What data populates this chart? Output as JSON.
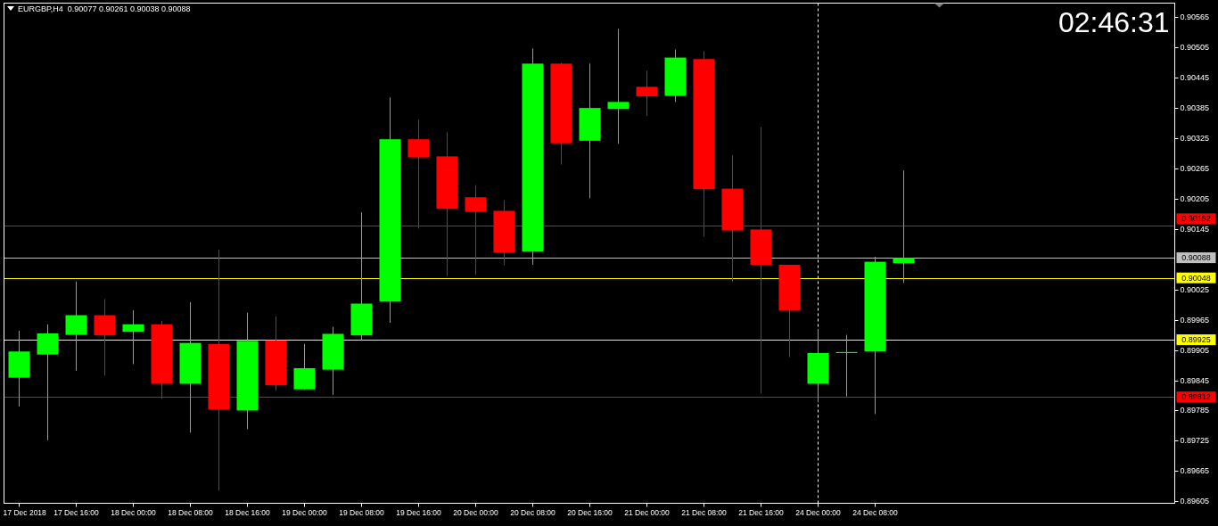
{
  "chart_data": {
    "type": "candlestick",
    "title": "EURGBP,H4  0.90077 0.90261 0.90038 0.90088",
    "categories": [
      "17 Dec 2018",
      null,
      "17 Dec 16:00",
      null,
      "18 Dec 00:00",
      null,
      "18 Dec 08:00",
      null,
      "18 Dec 16:00",
      null,
      "19 Dec 00:00",
      null,
      "19 Dec 08:00",
      null,
      "19 Dec 16:00",
      null,
      "20 Dec 00:00",
      null,
      "20 Dec 08:00",
      null,
      "20 Dec 16:00",
      null,
      "21 Dec 00:00",
      null,
      "21 Dec 08:00",
      null,
      "21 Dec 16:00",
      null,
      "24 Dec 00:00",
      null,
      "24 Dec 08:00",
      null,
      null,
      null,
      null,
      null,
      null,
      null,
      null,
      null,
      null
    ],
    "ohlc": [
      [
        0.8985,
        0.89943,
        0.89793,
        0.89902
      ],
      [
        0.89896,
        0.89956,
        0.89726,
        0.89938
      ],
      [
        0.89935,
        0.90041,
        0.89864,
        0.89974
      ],
      [
        0.89974,
        0.90006,
        0.89854,
        0.89934
      ],
      [
        0.89941,
        0.89984,
        0.89877,
        0.89956
      ],
      [
        0.89956,
        0.89963,
        0.89808,
        0.89838
      ],
      [
        0.89838,
        0.9,
        0.89741,
        0.89919
      ],
      [
        0.89917,
        0.90104,
        0.89626,
        0.89787
      ],
      [
        0.89785,
        0.89979,
        0.89748,
        0.89923
      ],
      [
        0.89924,
        0.89972,
        0.89824,
        0.89835
      ],
      [
        0.89827,
        0.89917,
        0.89826,
        0.89869
      ],
      [
        0.89866,
        0.89951,
        0.89816,
        0.89937
      ],
      [
        0.89934,
        0.90178,
        0.89923,
        0.89997
      ],
      [
        0.90001,
        0.90406,
        0.89959,
        0.90323
      ],
      [
        0.90323,
        0.90362,
        0.90146,
        0.90287
      ],
      [
        0.90289,
        0.90337,
        0.90052,
        0.90185
      ],
      [
        0.90208,
        0.90232,
        0.90054,
        0.90179
      ],
      [
        0.90181,
        0.90202,
        0.90073,
        0.90098
      ],
      [
        0.901,
        0.90503,
        0.90074,
        0.90473
      ],
      [
        0.90473,
        0.90475,
        0.90273,
        0.90315
      ],
      [
        0.9032,
        0.90473,
        0.90206,
        0.90385
      ],
      [
        0.90383,
        0.90542,
        0.90314,
        0.90397
      ],
      [
        0.90427,
        0.90459,
        0.90369,
        0.90408
      ],
      [
        0.90409,
        0.90501,
        0.90397,
        0.90485
      ],
      [
        0.90482,
        0.90498,
        0.9013,
        0.90224
      ],
      [
        0.90225,
        0.90291,
        0.9004,
        0.90142
      ],
      [
        0.90144,
        0.90347,
        0.89819,
        0.90074
      ],
      [
        0.90074,
        0.90074,
        0.89891,
        0.89983
      ],
      [
        0.89838,
        0.89947,
        0.89801,
        0.89899
      ],
      [
        0.89899,
        0.89935,
        0.89813,
        0.89901
      ],
      [
        0.89902,
        0.9009,
        0.89778,
        0.9008
      ],
      [
        0.90077,
        0.90261,
        0.90038,
        0.90088
      ],
      null,
      null,
      null,
      null,
      null,
      null,
      null,
      null,
      null
    ],
    "colors": [
      "#00ff00",
      "#00ff00",
      "#00ff00",
      "#ff0000",
      "#00ff00",
      "#ff0000",
      "#00ff00",
      "#ff0000",
      "#00ff00",
      "#ff0000",
      "#00ff00",
      "#00ff00",
      "#00ff00",
      "#00ff00",
      "#ff0000",
      "#ff0000",
      "#ff0000",
      "#ff0000",
      "#00ff00",
      "#ff0000",
      "#00ff00",
      "#00ff00",
      "#ff0000",
      "#00ff00",
      "#ff0000",
      "#ff0000",
      "#ff0000",
      "#ff0000",
      "#00ff00",
      "#00ff00",
      "#00ff00",
      "#00ff00",
      null,
      null,
      null,
      null,
      null,
      null,
      null,
      null,
      null
    ],
    "ylim": [
      0.89601,
      0.90593
    ],
    "yticks": [
      0.89605,
      0.89665,
      0.89725,
      0.89785,
      0.89845,
      0.89905,
      0.89965,
      0.90025,
      0.90145,
      0.90205,
      0.90265,
      0.90325,
      0.90385,
      0.90445,
      0.90505,
      0.90565
    ],
    "ref_lines": [
      {
        "axis": "y",
        "value": 0.90152,
        "label": "0.90152",
        "color": "#ff0000"
      },
      {
        "axis": "y",
        "value": 0.90088,
        "label": "0.90088",
        "color": "#c0c0c0"
      },
      {
        "axis": "y",
        "value": 0.90048,
        "label": "0.90048",
        "color": "#ffff00"
      },
      {
        "axis": "y",
        "value": 0.89925,
        "label": "0.89925",
        "color": "#ffff00"
      },
      {
        "axis": "y",
        "value": 0.89812,
        "label": "0.89812",
        "color": "#ff0000"
      },
      {
        "axis": "x",
        "value": "24 Dec 00:00",
        "color": "#ffffff",
        "line_style": "dashed"
      }
    ],
    "annotations": [
      "02:46:31"
    ]
  }
}
